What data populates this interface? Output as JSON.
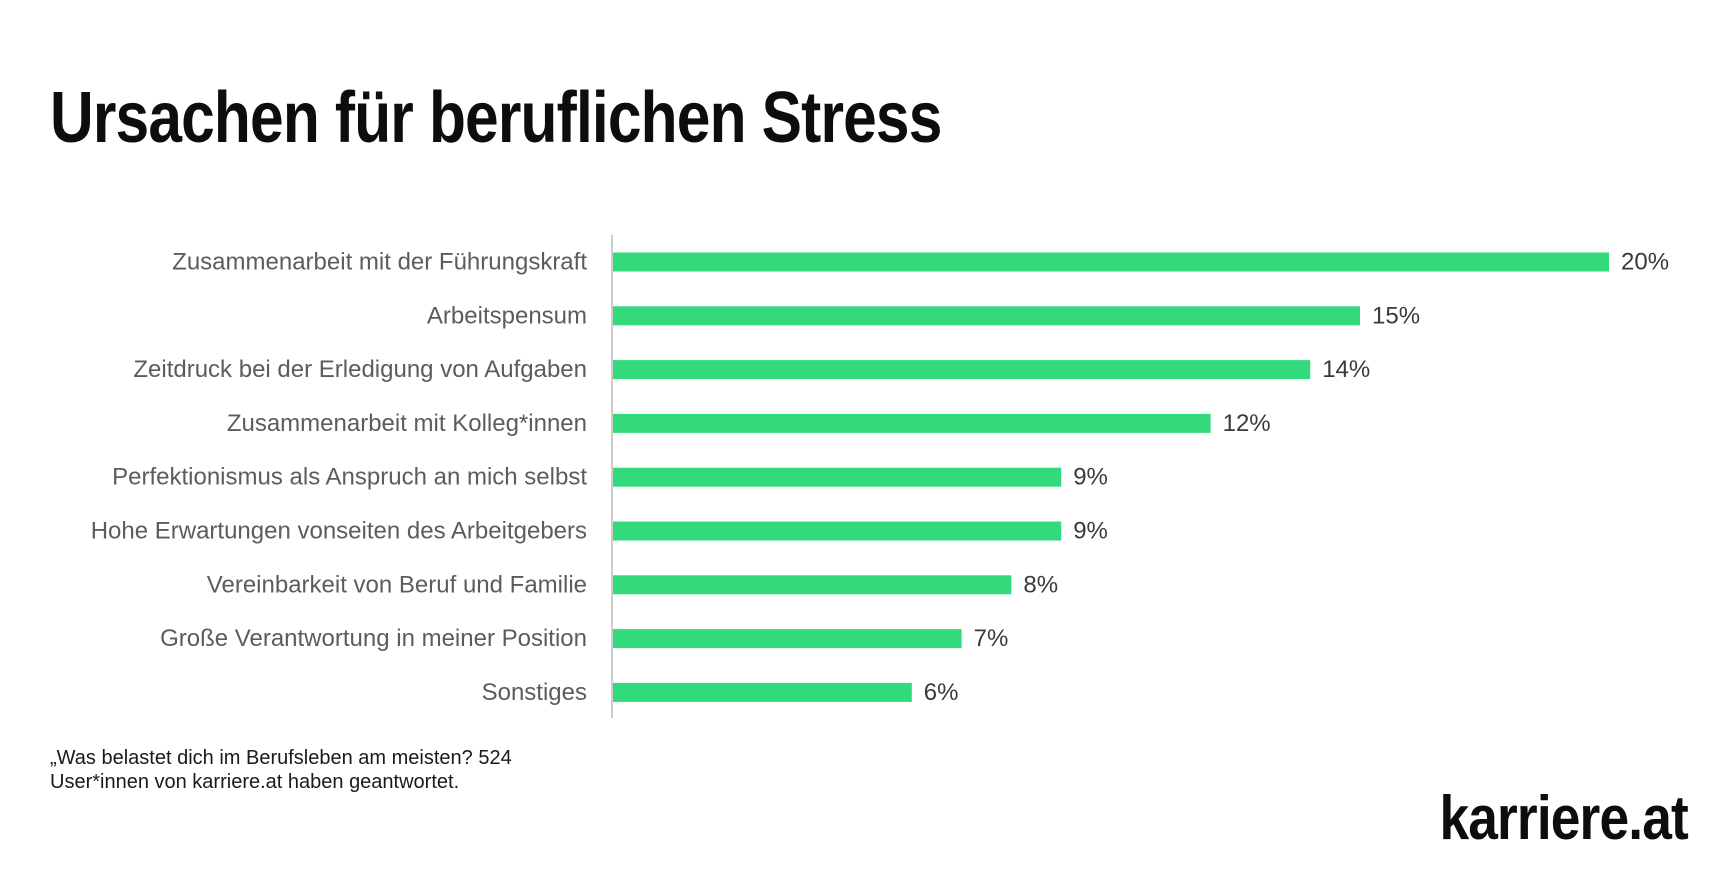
{
  "chart_data": {
    "type": "bar",
    "orientation": "horizontal",
    "title": "Ursachen für beruflichen Stress",
    "categories": [
      "Zusammenarbeit mit der Führungskraft",
      "Arbeitspensum",
      "Zeitdruck bei der Erledigung von Aufgaben",
      "Zusammenarbeit mit Kolleg*innen",
      "Perfektionismus als Anspruch an mich selbst",
      "Hohe Erwartungen vonseiten des Arbeitgebers",
      "Vereinbarkeit von Beruf und Familie",
      "Große Verantwortung in meiner Position",
      "Sonstiges"
    ],
    "values": [
      20,
      15,
      14,
      12,
      9,
      9,
      8,
      7,
      6
    ],
    "value_labels": [
      "20%",
      "15%",
      "14%",
      "12%",
      "9%",
      "9%",
      "8%",
      "7%",
      "6%"
    ],
    "unit": "%",
    "xlim": [
      0,
      20
    ],
    "bar_color": "#33da7c",
    "axis_color": "#cccccc",
    "grid": false,
    "legend": "none"
  },
  "footnote": "„Was belastet dich im Berufsleben am meisten? 524 User*innen von karriere.at haben geantwortet.",
  "brand": "karriere.at"
}
